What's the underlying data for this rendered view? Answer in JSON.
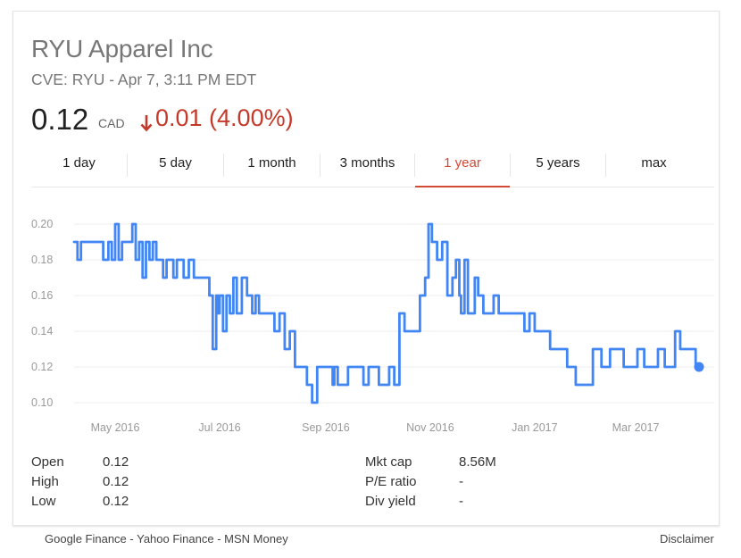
{
  "header": {
    "company": "RYU Apparel Inc",
    "ticker_line": "CVE: RYU - Apr 7, 3:11 PM EDT",
    "price": "0.12",
    "currency": "CAD",
    "change": "0.01 (4.00%)",
    "change_direction": "down",
    "change_color": "#c5392a"
  },
  "tabs": [
    {
      "label": "1 day",
      "active": false
    },
    {
      "label": "5 day",
      "active": false
    },
    {
      "label": "1 month",
      "active": false
    },
    {
      "label": "3 months",
      "active": false
    },
    {
      "label": "1 year",
      "active": true
    },
    {
      "label": "5 years",
      "active": false
    },
    {
      "label": "max",
      "active": false
    }
  ],
  "chart_data": {
    "type": "line",
    "series": [
      {
        "color": "#4285f4",
        "x": [
          "2016-04-07",
          "2016-04-09",
          "2016-04-11",
          "2016-04-13",
          "2016-04-15",
          "2016-04-18",
          "2016-04-21",
          "2016-04-24",
          "2016-04-27",
          "2016-04-29",
          "2016-05-01",
          "2016-05-03",
          "2016-05-05",
          "2016-05-07",
          "2016-05-09",
          "2016-05-11",
          "2016-05-13",
          "2016-05-15",
          "2016-05-17",
          "2016-05-19",
          "2016-05-21",
          "2016-05-23",
          "2016-05-25",
          "2016-05-27",
          "2016-05-29",
          "2016-05-31",
          "2016-06-02",
          "2016-06-04",
          "2016-06-06",
          "2016-06-08",
          "2016-06-10",
          "2016-06-13",
          "2016-06-16",
          "2016-06-19",
          "2016-06-22",
          "2016-06-25",
          "2016-06-27",
          "2016-06-29",
          "2016-06-30",
          "2016-07-01",
          "2016-07-03",
          "2016-07-05",
          "2016-07-07",
          "2016-07-09",
          "2016-07-11",
          "2016-07-14",
          "2016-07-17",
          "2016-07-20",
          "2016-07-22",
          "2016-07-24",
          "2016-07-27",
          "2016-07-30",
          "2016-08-02",
          "2016-08-05",
          "2016-08-08",
          "2016-08-11",
          "2016-08-14",
          "2016-08-16",
          "2016-08-18",
          "2016-08-21",
          "2016-08-24",
          "2016-08-27",
          "2016-08-30",
          "2016-09-02",
          "2016-09-05",
          "2016-09-06",
          "2016-09-08",
          "2016-09-11",
          "2016-09-14",
          "2016-09-17",
          "2016-09-20",
          "2016-09-23",
          "2016-09-26",
          "2016-09-29",
          "2016-10-02",
          "2016-10-05",
          "2016-10-08",
          "2016-10-11",
          "2016-10-14",
          "2016-10-17",
          "2016-10-20",
          "2016-10-23",
          "2016-10-26",
          "2016-10-29",
          "2016-10-31",
          "2016-11-02",
          "2016-11-05",
          "2016-11-08",
          "2016-11-11",
          "2016-11-14",
          "2016-11-16",
          "2016-11-18",
          "2016-11-19",
          "2016-11-21",
          "2016-11-23",
          "2016-11-25",
          "2016-11-27",
          "2016-11-29",
          "2016-12-02",
          "2016-12-05",
          "2016-12-08",
          "2016-12-11",
          "2016-12-14",
          "2016-12-17",
          "2016-12-20",
          "2016-12-23",
          "2016-12-26",
          "2016-12-29",
          "2017-01-01",
          "2017-01-05",
          "2017-01-10",
          "2017-01-15",
          "2017-01-20",
          "2017-01-25",
          "2017-01-30",
          "2017-02-04",
          "2017-02-09",
          "2017-02-14",
          "2017-02-18",
          "2017-02-22",
          "2017-02-26",
          "2017-03-02",
          "2017-03-06",
          "2017-03-10",
          "2017-03-14",
          "2017-03-18",
          "2017-03-22",
          "2017-03-24",
          "2017-03-27",
          "2017-03-30",
          "2017-04-02",
          "2017-04-05",
          "2017-04-07"
        ],
        "y": [
          0.19,
          0.18,
          0.19,
          0.19,
          0.19,
          0.19,
          0.19,
          0.18,
          0.19,
          0.18,
          0.2,
          0.18,
          0.19,
          0.19,
          0.19,
          0.2,
          0.18,
          0.19,
          0.17,
          0.19,
          0.18,
          0.19,
          0.18,
          0.18,
          0.17,
          0.18,
          0.18,
          0.17,
          0.18,
          0.18,
          0.17,
          0.18,
          0.17,
          0.17,
          0.17,
          0.16,
          0.13,
          0.16,
          0.15,
          0.16,
          0.14,
          0.16,
          0.15,
          0.17,
          0.15,
          0.17,
          0.16,
          0.15,
          0.16,
          0.15,
          0.15,
          0.15,
          0.14,
          0.15,
          0.13,
          0.14,
          0.12,
          0.12,
          0.12,
          0.11,
          0.1,
          0.12,
          0.12,
          0.12,
          0.11,
          0.12,
          0.11,
          0.11,
          0.12,
          0.12,
          0.12,
          0.11,
          0.12,
          0.12,
          0.11,
          0.11,
          0.12,
          0.11,
          0.15,
          0.14,
          0.14,
          0.14,
          0.16,
          0.17,
          0.2,
          0.19,
          0.18,
          0.19,
          0.16,
          0.17,
          0.18,
          0.16,
          0.15,
          0.18,
          0.15,
          0.15,
          0.17,
          0.16,
          0.15,
          0.15,
          0.16,
          0.15,
          0.15,
          0.15,
          0.15,
          0.15,
          0.14,
          0.15,
          0.14,
          0.14,
          0.13,
          0.13,
          0.12,
          0.11,
          0.11,
          0.13,
          0.12,
          0.13,
          0.13,
          0.12,
          0.12,
          0.13,
          0.12,
          0.12,
          0.13,
          0.12,
          0.12,
          0.14,
          0.13,
          0.13,
          0.13,
          0.12,
          0.12
        ]
      }
    ],
    "end_value": 0.12,
    "y_ticks": [
      "0.20",
      "0.18",
      "0.16",
      "0.14",
      "0.12",
      "0.10"
    ],
    "y_tick_values": [
      0.2,
      0.18,
      0.16,
      0.14,
      0.12,
      0.1
    ],
    "ylim": [
      0.1,
      0.2
    ],
    "x_ticks": [
      "May 2016",
      "Jul 2016",
      "Sep 2016",
      "Nov 2016",
      "Jan 2017",
      "Mar 2017"
    ],
    "x_tick_dates": [
      "2016-05-01",
      "2016-07-01",
      "2016-09-01",
      "2016-11-01",
      "2017-01-01",
      "2017-03-01"
    ],
    "xlim": [
      "2016-04-07",
      "2017-04-07"
    ],
    "grid": true,
    "grid_color": "#eeeeee",
    "tick_color": "#999999"
  },
  "stats": {
    "left": [
      {
        "label": "Open",
        "value": "0.12"
      },
      {
        "label": "High",
        "value": "0.12"
      },
      {
        "label": "Low",
        "value": "0.12"
      }
    ],
    "right": [
      {
        "label": "Mkt cap",
        "value": "8.56M"
      },
      {
        "label": "P/E ratio",
        "value": "-"
      },
      {
        "label": "Div yield",
        "value": "-"
      }
    ]
  },
  "footer": {
    "links": [
      "Google Finance",
      "Yahoo Finance",
      "MSN Money"
    ],
    "separator": " - ",
    "disclaimer": "Disclaimer"
  }
}
